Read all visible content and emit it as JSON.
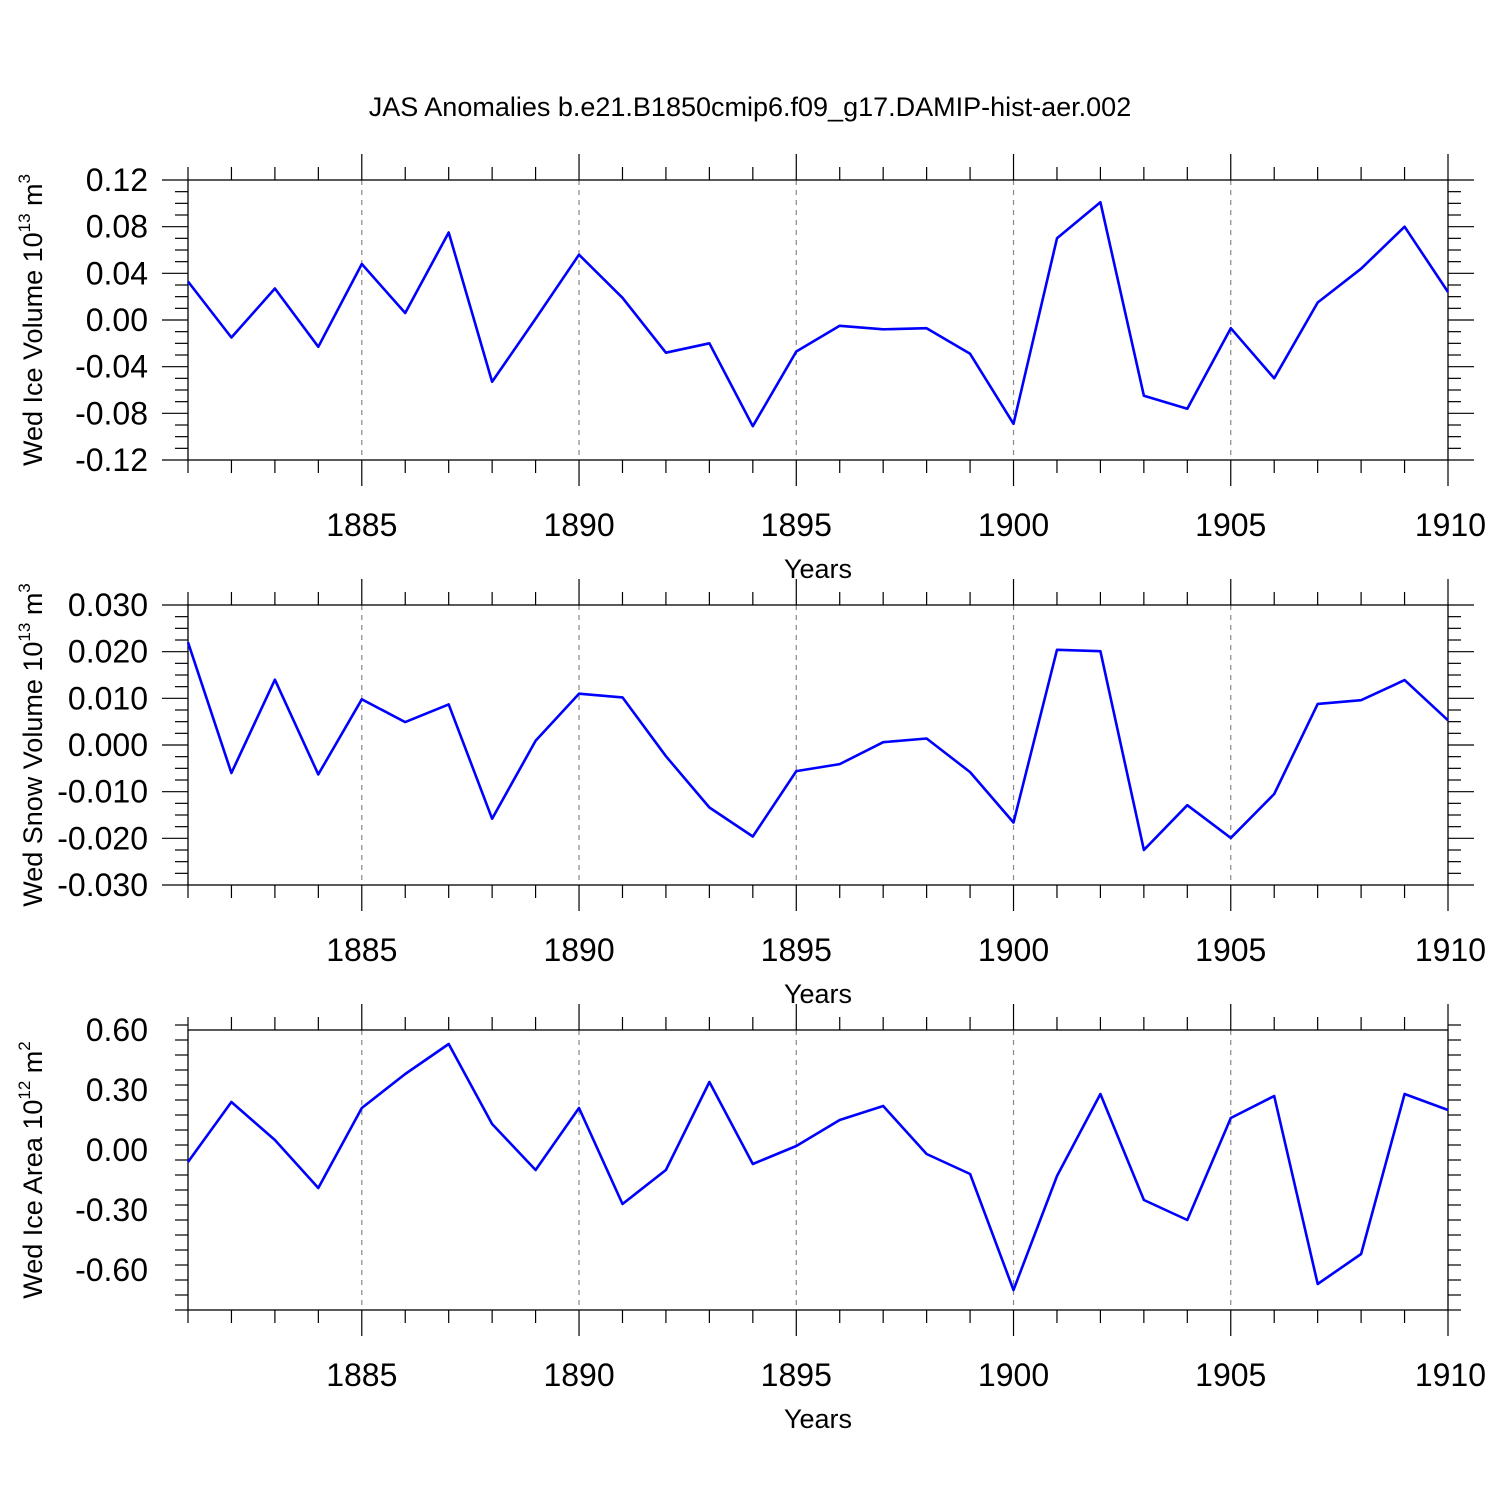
{
  "figure": {
    "title": "JAS Anomalies b.e21.B1850cmip6.f09_g17.DAMIP-hist-aer.002"
  },
  "chart_data": [
    {
      "type": "line",
      "xlabel": "Years",
      "ylabel": {
        "text": "Wed Ice Volume 10",
        "sup": "13",
        "unit": " m",
        "unit_sup": "3"
      },
      "xlim": [
        1881,
        1910
      ],
      "ylim": [
        -0.12,
        0.12
      ],
      "x_ticks": [
        1885,
        1890,
        1895,
        1900,
        1905,
        1910
      ],
      "x_tick_labels": [
        "1885",
        "1890",
        "1895",
        "1900",
        "1905",
        "1910"
      ],
      "y_ticks": [
        -0.12,
        -0.08,
        -0.04,
        0.0,
        0.04,
        0.08,
        0.12
      ],
      "y_tick_labels": [
        "-0.12",
        "-0.08",
        "-0.04",
        "0.00",
        "0.04",
        "0.08",
        "0.12"
      ],
      "grid": "vertical dashed at major x ticks",
      "color": "#0000ff",
      "x": [
        1881,
        1882,
        1883,
        1884,
        1885,
        1886,
        1887,
        1888,
        1889,
        1890,
        1891,
        1892,
        1893,
        1894,
        1895,
        1896,
        1897,
        1898,
        1899,
        1900,
        1901,
        1902,
        1903,
        1904,
        1905,
        1906,
        1907,
        1908,
        1909,
        1910
      ],
      "y": [
        0.033,
        -0.015,
        0.027,
        -0.023,
        0.048,
        0.006,
        0.075,
        -0.053,
        0.001,
        0.056,
        0.019,
        -0.028,
        -0.02,
        -0.091,
        -0.027,
        -0.005,
        -0.008,
        -0.007,
        -0.029,
        -0.089,
        0.07,
        0.101,
        -0.065,
        -0.076,
        -0.007,
        -0.05,
        0.015,
        0.044,
        0.08,
        0.024
      ]
    },
    {
      "type": "line",
      "xlabel": "Years",
      "ylabel": {
        "text": "Wed Snow Volume 10",
        "sup": "13",
        "unit": " m",
        "unit_sup": "3"
      },
      "xlim": [
        1881,
        1910
      ],
      "ylim": [
        -0.03,
        0.03
      ],
      "x_ticks": [
        1885,
        1890,
        1895,
        1900,
        1905,
        1910
      ],
      "x_tick_labels": [
        "1885",
        "1890",
        "1895",
        "1900",
        "1905",
        "1910"
      ],
      "y_ticks": [
        -0.03,
        -0.02,
        -0.01,
        0.0,
        0.01,
        0.02,
        0.03
      ],
      "y_tick_labels": [
        "-0.030",
        "-0.020",
        "-0.010",
        "0.000",
        "0.010",
        "0.020",
        "0.030"
      ],
      "grid": "vertical dashed at major x ticks",
      "color": "#0000ff",
      "x": [
        1881,
        1882,
        1883,
        1884,
        1885,
        1886,
        1887,
        1888,
        1889,
        1890,
        1891,
        1892,
        1893,
        1894,
        1895,
        1896,
        1897,
        1898,
        1899,
        1900,
        1901,
        1902,
        1903,
        1904,
        1905,
        1906,
        1907,
        1908,
        1909,
        1910
      ],
      "y": [
        0.022,
        -0.006,
        0.014,
        -0.0063,
        0.0098,
        0.0049,
        0.0087,
        -0.0158,
        0.0009,
        0.011,
        0.0102,
        -0.0024,
        -0.0134,
        -0.0196,
        -0.0056,
        -0.0041,
        0.0006,
        0.0014,
        -0.0058,
        -0.0166,
        0.0204,
        0.0201,
        -0.0225,
        -0.0129,
        -0.0199,
        -0.0105,
        0.0088,
        0.0096,
        0.0139,
        0.0053
      ]
    },
    {
      "type": "line",
      "xlabel": "Years",
      "ylabel": {
        "text": "Wed Ice Area 10",
        "sup": "12",
        "unit": " m",
        "unit_sup": "2"
      },
      "xlim": [
        1881,
        1910
      ],
      "ylim": [
        -0.8,
        0.6
      ],
      "x_ticks": [
        1885,
        1890,
        1895,
        1900,
        1905,
        1910
      ],
      "x_tick_labels": [
        "1885",
        "1890",
        "1895",
        "1900",
        "1905",
        "1910"
      ],
      "y_ticks": [
        -0.6,
        -0.3,
        0.0,
        0.3,
        0.6
      ],
      "y_tick_labels": [
        "-0.60",
        "-0.30",
        "0.00",
        "0.30",
        "0.60"
      ],
      "grid": "vertical dashed at major x ticks",
      "color": "#0000ff",
      "x": [
        1881,
        1882,
        1883,
        1884,
        1885,
        1886,
        1887,
        1888,
        1889,
        1890,
        1891,
        1892,
        1893,
        1894,
        1895,
        1896,
        1897,
        1898,
        1899,
        1900,
        1901,
        1902,
        1903,
        1904,
        1905,
        1906,
        1907,
        1908,
        1909,
        1910
      ],
      "y": [
        -0.06,
        0.24,
        0.05,
        -0.19,
        0.21,
        0.38,
        0.53,
        0.13,
        -0.1,
        0.21,
        -0.27,
        -0.1,
        0.34,
        -0.07,
        0.02,
        0.15,
        0.22,
        -0.02,
        -0.12,
        -0.7,
        -0.13,
        0.28,
        -0.25,
        -0.35,
        0.16,
        0.27,
        -0.67,
        -0.52,
        0.28,
        0.2
      ]
    }
  ]
}
